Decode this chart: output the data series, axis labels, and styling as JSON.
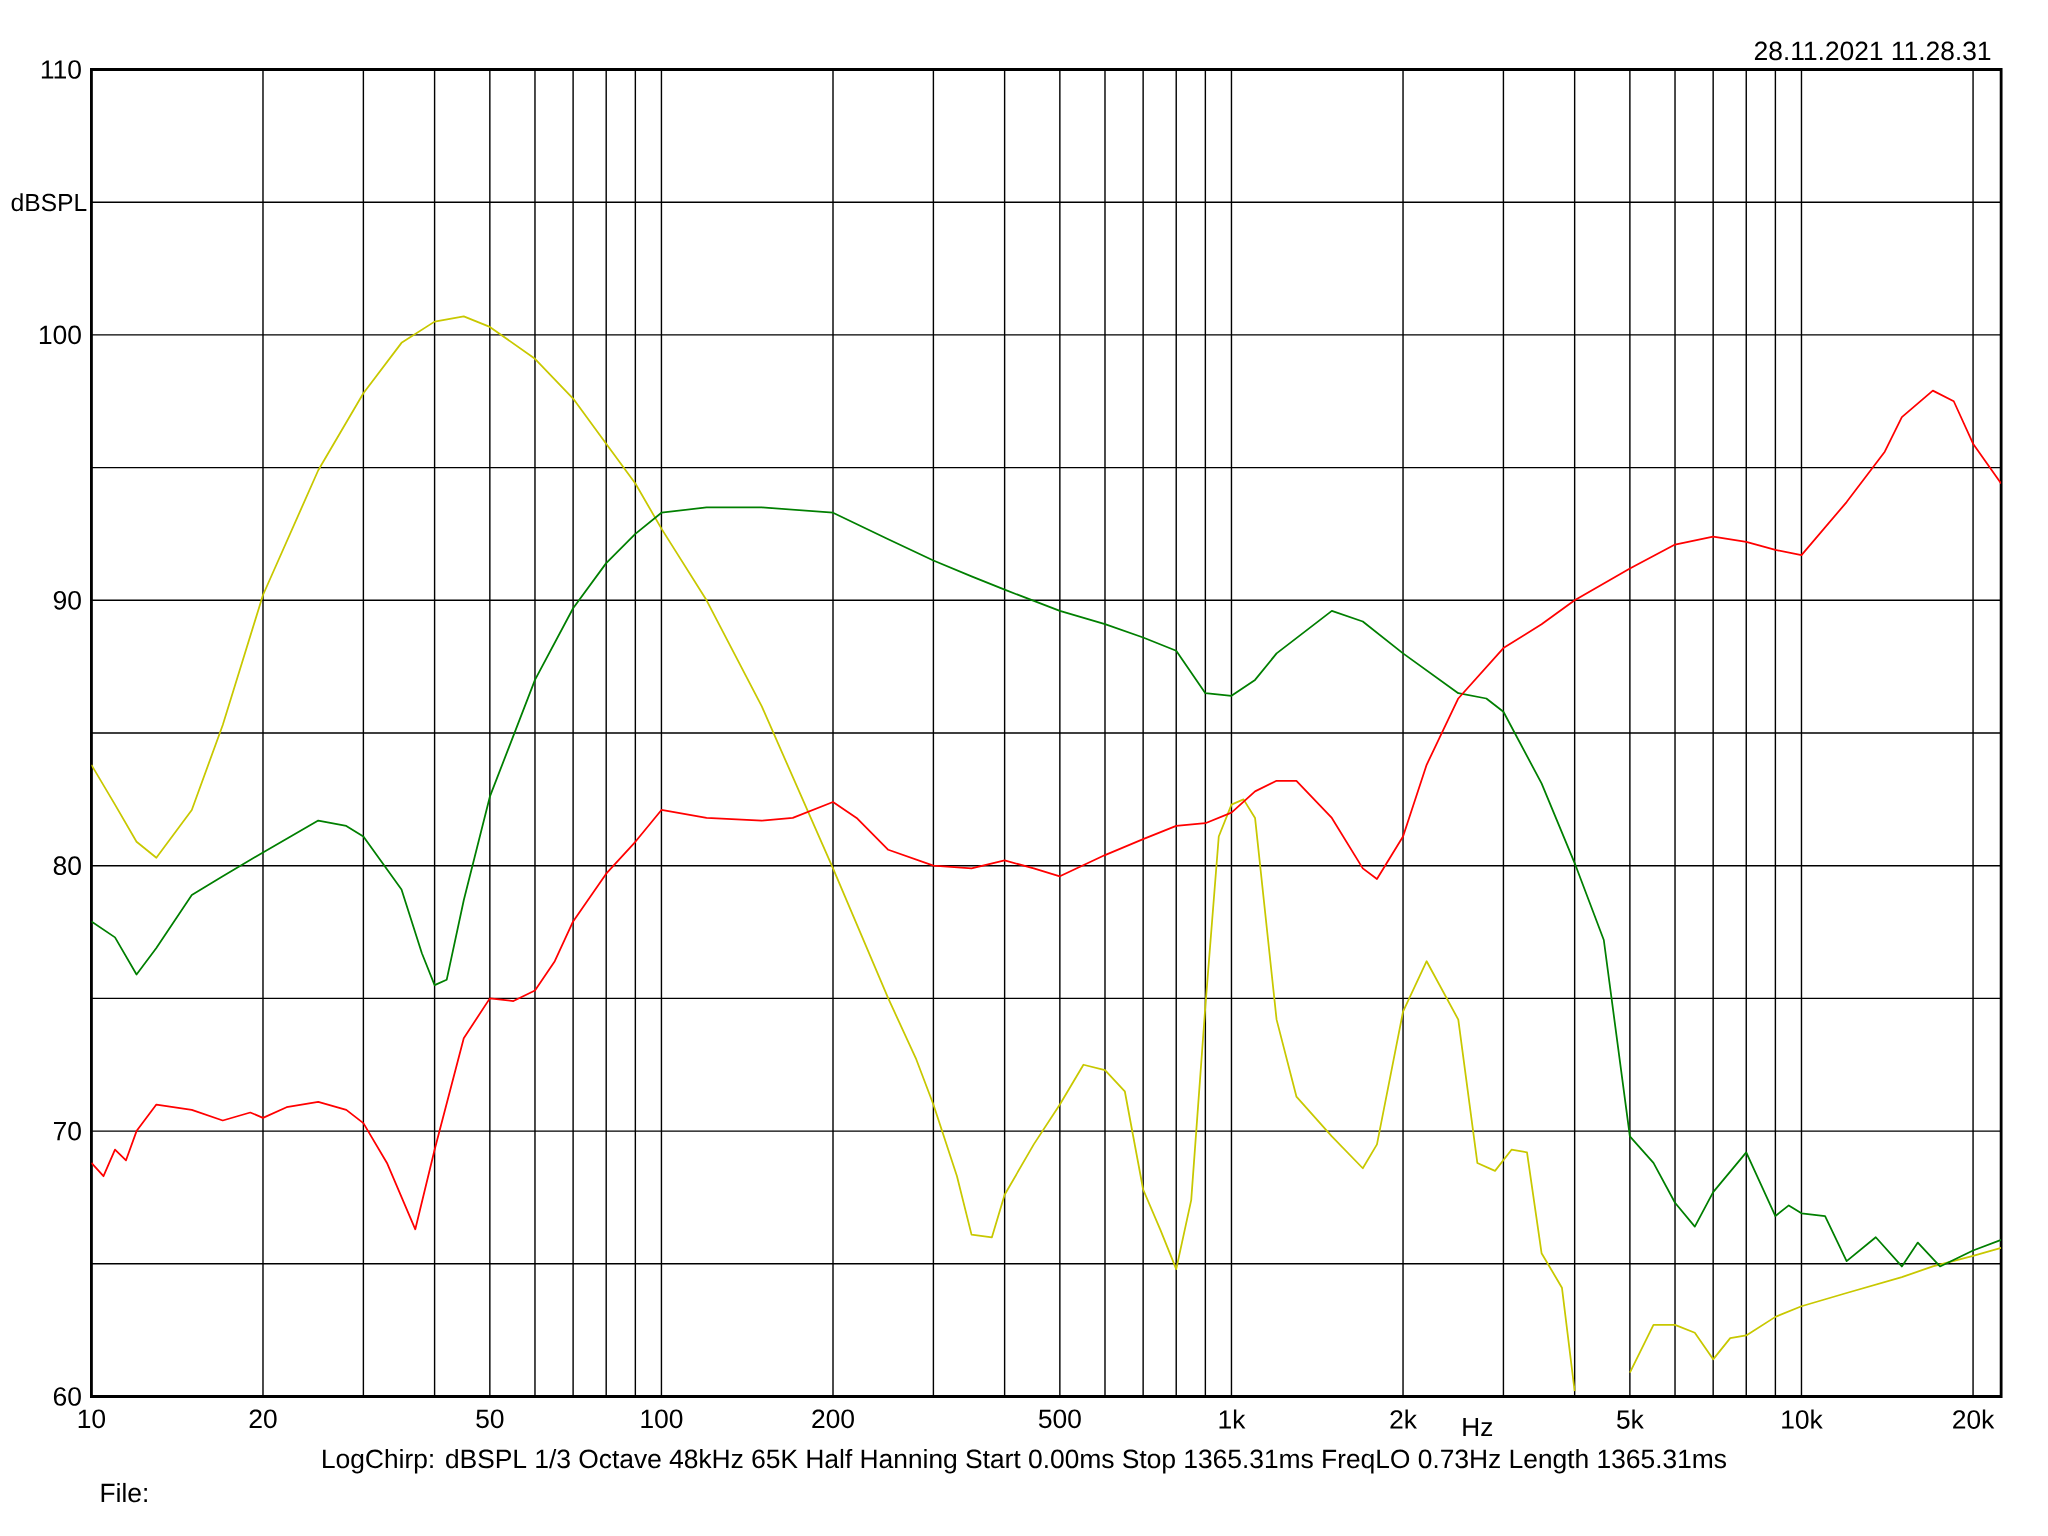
{
  "chart_data": {
    "type": "line",
    "ylabel": "dBSPL",
    "xlabel": "Hz",
    "log": "x",
    "grid": true,
    "xlim": [
      10,
      22400
    ],
    "ylim": [
      60,
      110
    ],
    "xticks": [
      10,
      20,
      {
        "value": 30,
        "label": null
      },
      {
        "value": 40,
        "label": null
      },
      50,
      {
        "value": 60,
        "label": null
      },
      {
        "value": 70,
        "label": null
      },
      {
        "value": 80,
        "label": null
      },
      {
        "value": 90,
        "label": null
      },
      100,
      200,
      {
        "value": 300,
        "label": null
      },
      {
        "value": 400,
        "label": null
      },
      500,
      {
        "value": 600,
        "label": null
      },
      {
        "value": 700,
        "label": null
      },
      {
        "value": 800,
        "label": null
      },
      {
        "value": 900,
        "label": null
      },
      {
        "value": 1000,
        "label": "1k"
      },
      {
        "value": 2000,
        "label": "2k"
      },
      {
        "value": 3000,
        "label": null
      },
      {
        "value": 4000,
        "label": null
      },
      {
        "value": 5000,
        "label": "5k"
      },
      {
        "value": 6000,
        "label": null
      },
      {
        "value": 7000,
        "label": null
      },
      {
        "value": 8000,
        "label": null
      },
      {
        "value": 9000,
        "label": null
      },
      {
        "value": 10000,
        "label": "10k"
      },
      {
        "value": 20000,
        "label": "20k"
      }
    ],
    "yticks": [
      60,
      {
        "value": 65,
        "label": null
      },
      70,
      {
        "value": 75,
        "label": null
      },
      80,
      {
        "value": 85,
        "label": null
      },
      90,
      {
        "value": 95,
        "label": null
      },
      100,
      {
        "value": 105,
        "label": null
      },
      110
    ],
    "annotations": [
      "28.11.2021 11.28.31",
      "LogChirp:  dBSPL   1/3 Octave   48kHz   65K   Half Hanning   Start 0.00ms   Stop 1365.31ms   FreqLO 0.73Hz   Length 1365.31ms",
      "File:"
    ],
    "series": [
      {
        "color": "#c8c800",
        "x": [
          10,
          11,
          12,
          13,
          15,
          17,
          20,
          25,
          30,
          35,
          40,
          45,
          50,
          60,
          70,
          80,
          90,
          100,
          120,
          150,
          200,
          250,
          280,
          300,
          330,
          350,
          380,
          400,
          450,
          500,
          550,
          600,
          650,
          700,
          750,
          800,
          850,
          900,
          950,
          1000,
          1050,
          1100,
          1200,
          1300,
          1500,
          1700,
          1800,
          2000,
          2200,
          2500,
          2700,
          2900,
          3100,
          3300,
          3500,
          3800,
          4000,
          4500,
          5000,
          5500,
          6000,
          6500,
          7000,
          7500,
          8000,
          9000,
          10000,
          12000,
          15000,
          17000,
          20000,
          22400
        ],
        "values": [
          83.8,
          82.3,
          80.9,
          80.3,
          82.1,
          85.3,
          90.2,
          94.9,
          97.8,
          99.7,
          100.5,
          100.7,
          100.3,
          99.1,
          97.6,
          95.9,
          94.4,
          92.7,
          90.0,
          86.0,
          79.9,
          75.0,
          72.7,
          71.0,
          68.3,
          66.1,
          66.0,
          67.6,
          69.5,
          71.0,
          72.5,
          72.3,
          71.5,
          67.8,
          66.3,
          64.8,
          67.4,
          74.7,
          81.1,
          82.3,
          82.5,
          81.8,
          74.2,
          71.3,
          69.8,
          68.6,
          69.5,
          74.5,
          76.4,
          74.2,
          68.8,
          68.5,
          69.3,
          69.2,
          65.4,
          64.1,
          60.2,
          null,
          60.9,
          62.7,
          62.7,
          62.4,
          61.4,
          62.2,
          62.3,
          63.0,
          63.4,
          63.9,
          64.5,
          64.9,
          65.3,
          65.6
        ]
      },
      {
        "color": "#007f00",
        "x": [
          10,
          11,
          12,
          13,
          15,
          17,
          20,
          25,
          28,
          30,
          35,
          38,
          40,
          42,
          45,
          50,
          60,
          70,
          80,
          90,
          100,
          120,
          150,
          200,
          250,
          300,
          350,
          400,
          500,
          600,
          700,
          800,
          900,
          1000,
          1100,
          1200,
          1500,
          1700,
          2000,
          2500,
          2800,
          3000,
          3500,
          4000,
          4500,
          5000,
          5500,
          6000,
          6500,
          7000,
          8000,
          9000,
          9500,
          10000,
          11000,
          12000,
          13500,
          15000,
          16000,
          17500,
          20000,
          22400
        ],
        "values": [
          77.9,
          77.3,
          75.9,
          76.9,
          78.9,
          79.6,
          80.5,
          81.7,
          81.5,
          81.1,
          79.1,
          76.7,
          75.5,
          75.7,
          78.7,
          82.6,
          87.0,
          89.7,
          91.4,
          92.5,
          93.3,
          93.5,
          93.5,
          93.3,
          92.3,
          91.5,
          90.9,
          90.4,
          89.6,
          89.1,
          88.6,
          88.1,
          86.5,
          86.4,
          87.0,
          88.0,
          89.6,
          89.2,
          88.0,
          86.5,
          86.3,
          85.8,
          83.1,
          80.1,
          77.2,
          69.8,
          68.8,
          67.3,
          66.4,
          67.7,
          69.2,
          66.8,
          67.2,
          66.9,
          66.8,
          65.1,
          66.0,
          64.9,
          65.8,
          64.9,
          65.5,
          65.9
        ]
      },
      {
        "color": "#ff0000",
        "x": [
          10,
          10.5,
          11,
          11.5,
          12,
          13,
          15,
          17,
          19,
          20,
          22,
          25,
          28,
          30,
          33,
          37,
          40,
          45,
          50,
          55,
          60,
          65,
          70,
          80,
          90,
          100,
          120,
          150,
          170,
          200,
          220,
          250,
          300,
          350,
          400,
          450,
          500,
          600,
          700,
          800,
          900,
          1000,
          1100,
          1200,
          1300,
          1500,
          1700,
          1800,
          2000,
          2200,
          2500,
          3000,
          3500,
          4000,
          5000,
          6000,
          7000,
          8000,
          9000,
          10000,
          12000,
          14000,
          15000,
          17000,
          18500,
          20000,
          22400
        ],
        "values": [
          68.8,
          68.3,
          69.3,
          68.9,
          70.0,
          71.0,
          70.8,
          70.4,
          70.7,
          70.5,
          70.9,
          71.1,
          70.8,
          70.3,
          68.8,
          66.3,
          69.3,
          73.5,
          75.0,
          74.9,
          75.3,
          76.4,
          77.9,
          79.7,
          80.9,
          82.1,
          81.8,
          81.7,
          81.8,
          82.4,
          81.8,
          80.6,
          80.0,
          79.9,
          80.2,
          79.9,
          79.6,
          80.4,
          81.0,
          81.5,
          81.6,
          82.0,
          82.8,
          83.2,
          83.2,
          81.8,
          79.9,
          79.5,
          81.1,
          83.8,
          86.3,
          88.2,
          89.1,
          90.0,
          91.2,
          92.1,
          92.4,
          92.2,
          91.9,
          91.7,
          93.7,
          95.6,
          96.9,
          97.9,
          97.5,
          95.9,
          94.4
        ]
      }
    ]
  }
}
